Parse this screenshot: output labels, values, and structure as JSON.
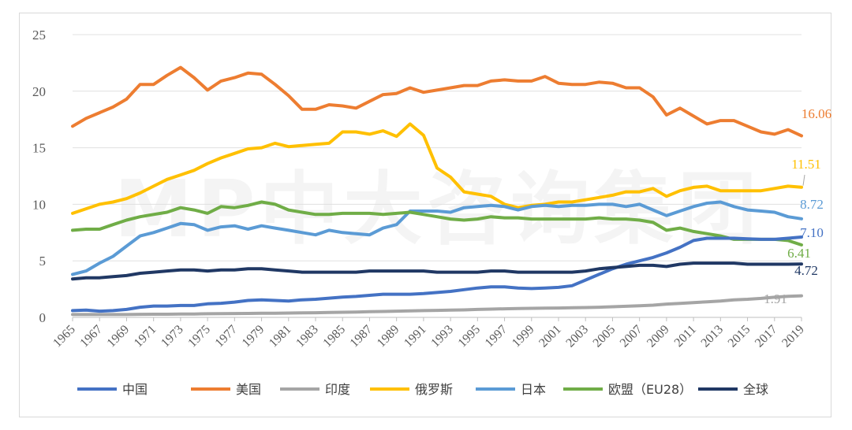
{
  "chart_data": {
    "type": "line",
    "title": "",
    "xlabel": "",
    "ylabel": "",
    "ylim": [
      0,
      25
    ],
    "yticks": [
      0,
      5,
      10,
      15,
      20,
      25
    ],
    "x": [
      1965,
      1966,
      1967,
      1968,
      1969,
      1970,
      1971,
      1972,
      1973,
      1974,
      1975,
      1976,
      1977,
      1978,
      1979,
      1980,
      1981,
      1982,
      1983,
      1984,
      1985,
      1986,
      1987,
      1988,
      1989,
      1990,
      1991,
      1992,
      1993,
      1994,
      1995,
      1996,
      1997,
      1998,
      1999,
      2000,
      2001,
      2002,
      2003,
      2004,
      2005,
      2006,
      2007,
      2008,
      2009,
      2010,
      2011,
      2012,
      2013,
      2014,
      2015,
      2016,
      2017,
      2018,
      2019
    ],
    "xtick_labels": [
      "1965",
      "1967",
      "1969",
      "1971",
      "1973",
      "1975",
      "1977",
      "1979",
      "1981",
      "1983",
      "1985",
      "1987",
      "1989",
      "1991",
      "1993",
      "1995",
      "1997",
      "1999",
      "2001",
      "2003",
      "2005",
      "2007",
      "2009",
      "2011",
      "2013",
      "2015",
      "2017",
      "2019"
    ],
    "grid": true,
    "legend_position": "bottom",
    "watermark": "MP中大咨询集团",
    "series": [
      {
        "name": "中国",
        "color": "#4472C4",
        "end_label": "7.10",
        "values": [
          0.6,
          0.65,
          0.55,
          0.6,
          0.7,
          0.9,
          1.0,
          1.0,
          1.05,
          1.05,
          1.2,
          1.25,
          1.35,
          1.5,
          1.55,
          1.5,
          1.45,
          1.55,
          1.6,
          1.7,
          1.8,
          1.85,
          1.95,
          2.05,
          2.05,
          2.05,
          2.1,
          2.2,
          2.3,
          2.45,
          2.6,
          2.7,
          2.7,
          2.6,
          2.55,
          2.6,
          2.65,
          2.8,
          3.3,
          3.8,
          4.3,
          4.7,
          5.0,
          5.3,
          5.7,
          6.2,
          6.8,
          7.0,
          7.0,
          7.0,
          6.95,
          6.9,
          6.9,
          7.0,
          7.1
        ]
      },
      {
        "name": "美国",
        "color": "#ED7D31",
        "end_label": "16.06",
        "values": [
          16.9,
          17.6,
          18.1,
          18.6,
          19.3,
          20.6,
          20.6,
          21.4,
          22.1,
          21.2,
          20.1,
          20.9,
          21.2,
          21.6,
          21.5,
          20.6,
          19.6,
          18.4,
          18.4,
          18.8,
          18.7,
          18.5,
          19.1,
          19.7,
          19.8,
          20.3,
          19.9,
          20.1,
          20.3,
          20.5,
          20.5,
          20.9,
          21.0,
          20.9,
          20.9,
          21.3,
          20.7,
          20.6,
          20.6,
          20.8,
          20.7,
          20.3,
          20.3,
          19.5,
          17.9,
          18.5,
          17.8,
          17.1,
          17.4,
          17.4,
          16.9,
          16.4,
          16.2,
          16.6,
          16.06
        ]
      },
      {
        "name": "印度",
        "color": "#A5A5A5",
        "end_label": "1.91",
        "values": [
          0.25,
          0.25,
          0.25,
          0.25,
          0.25,
          0.27,
          0.28,
          0.28,
          0.3,
          0.3,
          0.32,
          0.33,
          0.34,
          0.35,
          0.36,
          0.37,
          0.38,
          0.4,
          0.41,
          0.43,
          0.45,
          0.47,
          0.5,
          0.52,
          0.55,
          0.58,
          0.6,
          0.62,
          0.64,
          0.66,
          0.7,
          0.73,
          0.76,
          0.78,
          0.8,
          0.82,
          0.83,
          0.85,
          0.87,
          0.9,
          0.94,
          0.98,
          1.03,
          1.08,
          1.18,
          1.24,
          1.3,
          1.38,
          1.45,
          1.55,
          1.6,
          1.68,
          1.78,
          1.86,
          1.91
        ]
      },
      {
        "name": "俄罗斯",
        "color": "#FFC000",
        "end_label": "11.51",
        "values": [
          9.2,
          9.6,
          10.0,
          10.2,
          10.5,
          11.0,
          11.6,
          12.2,
          12.6,
          13.0,
          13.6,
          14.1,
          14.5,
          14.9,
          15.0,
          15.4,
          15.1,
          15.2,
          15.3,
          15.4,
          16.4,
          16.4,
          16.2,
          16.5,
          16.0,
          17.1,
          16.1,
          13.2,
          12.4,
          11.1,
          10.9,
          10.7,
          10.0,
          9.7,
          9.9,
          10.0,
          10.2,
          10.2,
          10.4,
          10.6,
          10.8,
          11.1,
          11.1,
          11.4,
          10.7,
          11.2,
          11.5,
          11.6,
          11.2,
          11.2,
          11.2,
          11.2,
          11.4,
          11.6,
          11.51
        ]
      },
      {
        "name": "日本",
        "color": "#5B9BD5",
        "end_label": "8.72",
        "values": [
          3.8,
          4.1,
          4.8,
          5.4,
          6.3,
          7.2,
          7.5,
          7.9,
          8.3,
          8.2,
          7.7,
          8.0,
          8.1,
          7.8,
          8.1,
          7.9,
          7.7,
          7.5,
          7.3,
          7.7,
          7.5,
          7.4,
          7.3,
          7.9,
          8.2,
          9.4,
          9.4,
          9.4,
          9.3,
          9.7,
          9.8,
          9.9,
          9.8,
          9.5,
          9.8,
          9.9,
          9.8,
          9.9,
          9.9,
          10.0,
          10.0,
          9.8,
          10.0,
          9.5,
          9.0,
          9.4,
          9.8,
          10.1,
          10.2,
          9.8,
          9.5,
          9.4,
          9.3,
          8.9,
          8.72
        ]
      },
      {
        "name": "欧盟（EU28）",
        "color": "#70AD47",
        "end_label": "6.41",
        "values": [
          7.7,
          7.8,
          7.8,
          8.2,
          8.6,
          8.9,
          9.1,
          9.3,
          9.7,
          9.5,
          9.2,
          9.8,
          9.7,
          9.9,
          10.2,
          10.0,
          9.5,
          9.3,
          9.1,
          9.1,
          9.2,
          9.2,
          9.2,
          9.1,
          9.2,
          9.3,
          9.1,
          8.9,
          8.7,
          8.6,
          8.7,
          8.9,
          8.8,
          8.8,
          8.7,
          8.7,
          8.7,
          8.7,
          8.7,
          8.8,
          8.7,
          8.7,
          8.6,
          8.4,
          7.7,
          7.9,
          7.6,
          7.4,
          7.2,
          6.9,
          6.9,
          6.9,
          6.9,
          6.8,
          6.41
        ]
      },
      {
        "name": "全球",
        "color": "#203864",
        "end_label": "4.72",
        "values": [
          3.4,
          3.5,
          3.5,
          3.6,
          3.7,
          3.9,
          4.0,
          4.1,
          4.2,
          4.2,
          4.1,
          4.2,
          4.2,
          4.3,
          4.3,
          4.2,
          4.1,
          4.0,
          4.0,
          4.0,
          4.0,
          4.0,
          4.1,
          4.1,
          4.1,
          4.1,
          4.1,
          4.0,
          4.0,
          4.0,
          4.0,
          4.1,
          4.1,
          4.0,
          4.0,
          4.0,
          4.0,
          4.0,
          4.1,
          4.3,
          4.4,
          4.5,
          4.6,
          4.6,
          4.5,
          4.7,
          4.8,
          4.8,
          4.8,
          4.8,
          4.7,
          4.7,
          4.7,
          4.7,
          4.72
        ]
      }
    ]
  }
}
